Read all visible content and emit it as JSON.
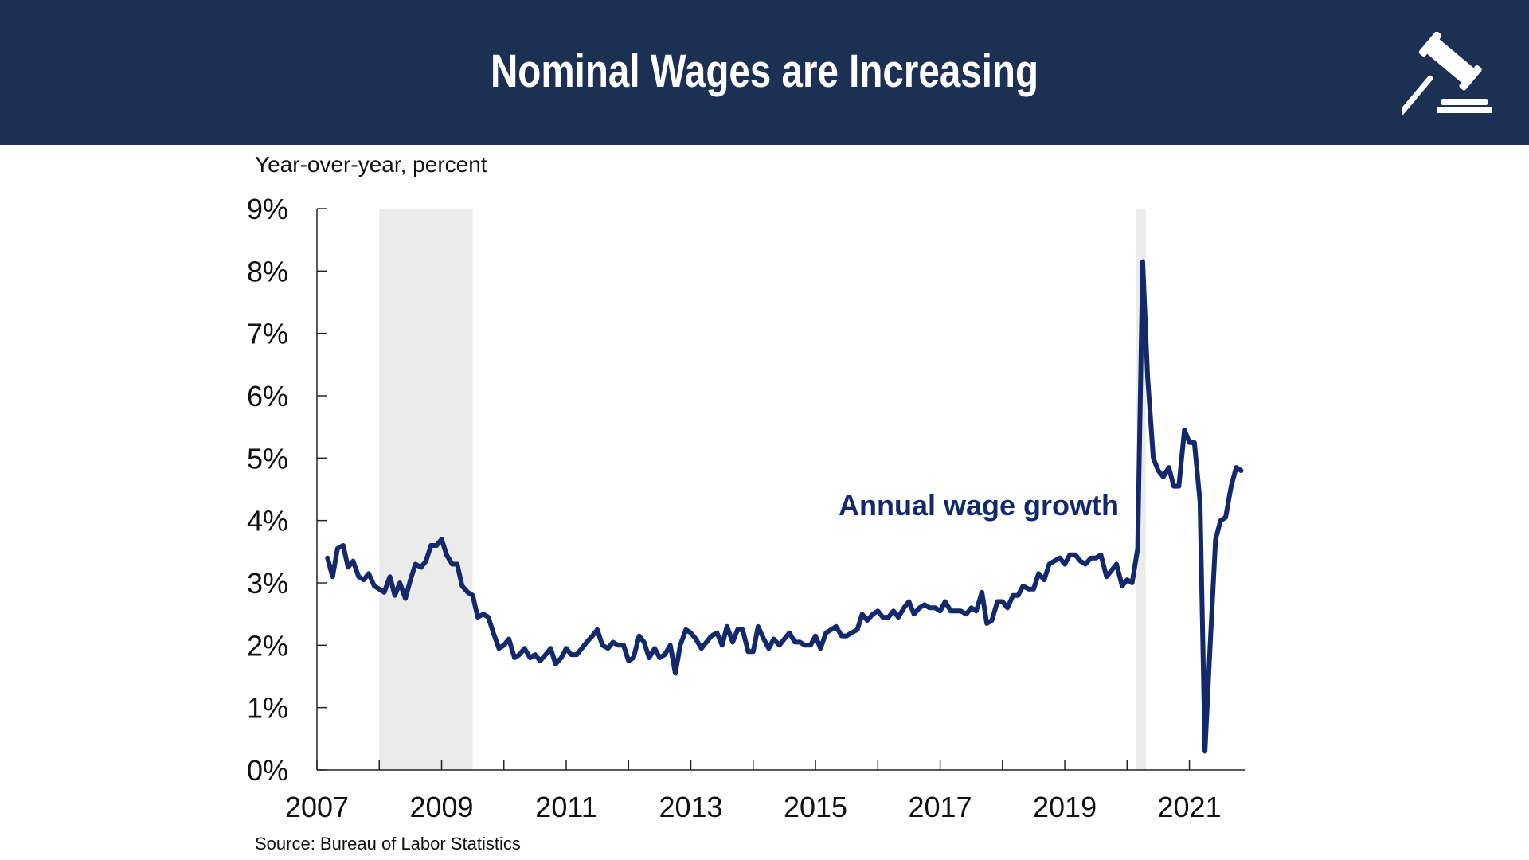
{
  "header": {
    "title": "Nominal Wages are Increasing",
    "icon": "gavel-icon",
    "background": "#1b3052"
  },
  "chart_data": {
    "type": "line",
    "title": "",
    "ylabel": "Year-over-year, percent",
    "xlabel": "",
    "ylim": [
      0,
      9
    ],
    "xlim": [
      2007.0,
      2021.9
    ],
    "y_ticks": [
      "0%",
      "1%",
      "2%",
      "3%",
      "4%",
      "5%",
      "6%",
      "7%",
      "8%",
      "9%"
    ],
    "y_tick_values": [
      0,
      1,
      2,
      3,
      4,
      5,
      6,
      7,
      8,
      9
    ],
    "x_ticks": [
      "2007",
      "2009",
      "2011",
      "2013",
      "2015",
      "2017",
      "2019",
      "2021"
    ],
    "x_tick_values": [
      2007,
      2009,
      2011,
      2013,
      2015,
      2017,
      2019,
      2021
    ],
    "grid": false,
    "recession_shading": [
      [
        2008.0,
        2009.5
      ],
      [
        2020.15,
        2020.3
      ]
    ],
    "shading_color": "#ebebeb",
    "series": [
      {
        "name": "Annual wage growth",
        "color": "#13296b",
        "points": [
          [
            2007.17,
            3.4
          ],
          [
            2007.25,
            3.1
          ],
          [
            2007.33,
            3.55
          ],
          [
            2007.42,
            3.6
          ],
          [
            2007.5,
            3.25
          ],
          [
            2007.58,
            3.35
          ],
          [
            2007.67,
            3.1
          ],
          [
            2007.75,
            3.05
          ],
          [
            2007.83,
            3.15
          ],
          [
            2007.92,
            2.95
          ],
          [
            2008.0,
            2.9
          ],
          [
            2008.08,
            2.85
          ],
          [
            2008.17,
            3.1
          ],
          [
            2008.25,
            2.8
          ],
          [
            2008.33,
            3.0
          ],
          [
            2008.42,
            2.75
          ],
          [
            2008.5,
            3.05
          ],
          [
            2008.58,
            3.3
          ],
          [
            2008.67,
            3.25
          ],
          [
            2008.75,
            3.35
          ],
          [
            2008.83,
            3.6
          ],
          [
            2008.92,
            3.6
          ],
          [
            2009.0,
            3.7
          ],
          [
            2009.08,
            3.45
          ],
          [
            2009.17,
            3.3
          ],
          [
            2009.25,
            3.3
          ],
          [
            2009.33,
            2.95
          ],
          [
            2009.42,
            2.85
          ],
          [
            2009.5,
            2.8
          ],
          [
            2009.58,
            2.45
          ],
          [
            2009.67,
            2.5
          ],
          [
            2009.75,
            2.45
          ],
          [
            2009.83,
            2.2
          ],
          [
            2009.92,
            1.95
          ],
          [
            2010.0,
            2.0
          ],
          [
            2010.08,
            2.1
          ],
          [
            2010.17,
            1.8
          ],
          [
            2010.25,
            1.85
          ],
          [
            2010.33,
            1.95
          ],
          [
            2010.42,
            1.8
          ],
          [
            2010.5,
            1.85
          ],
          [
            2010.58,
            1.75
          ],
          [
            2010.67,
            1.85
          ],
          [
            2010.75,
            1.95
          ],
          [
            2010.83,
            1.7
          ],
          [
            2010.92,
            1.8
          ],
          [
            2011.0,
            1.95
          ],
          [
            2011.08,
            1.85
          ],
          [
            2011.17,
            1.85
          ],
          [
            2011.25,
            1.95
          ],
          [
            2011.33,
            2.05
          ],
          [
            2011.42,
            2.15
          ],
          [
            2011.5,
            2.25
          ],
          [
            2011.58,
            2.0
          ],
          [
            2011.67,
            1.95
          ],
          [
            2011.75,
            2.05
          ],
          [
            2011.83,
            2.0
          ],
          [
            2011.92,
            2.0
          ],
          [
            2012.0,
            1.75
          ],
          [
            2012.08,
            1.8
          ],
          [
            2012.17,
            2.15
          ],
          [
            2012.25,
            2.05
          ],
          [
            2012.33,
            1.8
          ],
          [
            2012.42,
            1.95
          ],
          [
            2012.5,
            1.8
          ],
          [
            2012.58,
            1.85
          ],
          [
            2012.67,
            2.0
          ],
          [
            2012.75,
            1.55
          ],
          [
            2012.83,
            2.0
          ],
          [
            2012.92,
            2.25
          ],
          [
            2013.0,
            2.2
          ],
          [
            2013.08,
            2.1
          ],
          [
            2013.17,
            1.95
          ],
          [
            2013.25,
            2.05
          ],
          [
            2013.33,
            2.15
          ],
          [
            2013.42,
            2.2
          ],
          [
            2013.5,
            2.0
          ],
          [
            2013.58,
            2.3
          ],
          [
            2013.67,
            2.05
          ],
          [
            2013.75,
            2.25
          ],
          [
            2013.83,
            2.25
          ],
          [
            2013.92,
            1.9
          ],
          [
            2014.0,
            1.9
          ],
          [
            2014.08,
            2.3
          ],
          [
            2014.17,
            2.1
          ],
          [
            2014.25,
            1.95
          ],
          [
            2014.33,
            2.1
          ],
          [
            2014.42,
            2.0
          ],
          [
            2014.5,
            2.1
          ],
          [
            2014.58,
            2.2
          ],
          [
            2014.67,
            2.05
          ],
          [
            2014.75,
            2.05
          ],
          [
            2014.83,
            2.0
          ],
          [
            2014.92,
            2.0
          ],
          [
            2015.0,
            2.15
          ],
          [
            2015.08,
            1.95
          ],
          [
            2015.17,
            2.2
          ],
          [
            2015.25,
            2.25
          ],
          [
            2015.33,
            2.3
          ],
          [
            2015.42,
            2.15
          ],
          [
            2015.5,
            2.15
          ],
          [
            2015.58,
            2.2
          ],
          [
            2015.67,
            2.25
          ],
          [
            2015.75,
            2.5
          ],
          [
            2015.83,
            2.4
          ],
          [
            2015.92,
            2.5
          ],
          [
            2016.0,
            2.55
          ],
          [
            2016.08,
            2.45
          ],
          [
            2016.17,
            2.45
          ],
          [
            2016.25,
            2.55
          ],
          [
            2016.33,
            2.45
          ],
          [
            2016.42,
            2.6
          ],
          [
            2016.5,
            2.7
          ],
          [
            2016.58,
            2.5
          ],
          [
            2016.67,
            2.6
          ],
          [
            2016.75,
            2.65
          ],
          [
            2016.83,
            2.6
          ],
          [
            2016.92,
            2.6
          ],
          [
            2017.0,
            2.55
          ],
          [
            2017.08,
            2.7
          ],
          [
            2017.17,
            2.55
          ],
          [
            2017.25,
            2.55
          ],
          [
            2017.33,
            2.55
          ],
          [
            2017.42,
            2.5
          ],
          [
            2017.5,
            2.6
          ],
          [
            2017.58,
            2.55
          ],
          [
            2017.67,
            2.85
          ],
          [
            2017.75,
            2.35
          ],
          [
            2017.83,
            2.4
          ],
          [
            2017.92,
            2.7
          ],
          [
            2018.0,
            2.7
          ],
          [
            2018.08,
            2.6
          ],
          [
            2018.17,
            2.8
          ],
          [
            2018.25,
            2.8
          ],
          [
            2018.33,
            2.95
          ],
          [
            2018.42,
            2.9
          ],
          [
            2018.5,
            2.9
          ],
          [
            2018.58,
            3.15
          ],
          [
            2018.67,
            3.05
          ],
          [
            2018.75,
            3.3
          ],
          [
            2018.83,
            3.35
          ],
          [
            2018.92,
            3.4
          ],
          [
            2019.0,
            3.3
          ],
          [
            2019.08,
            3.45
          ],
          [
            2019.17,
            3.45
          ],
          [
            2019.25,
            3.35
          ],
          [
            2019.33,
            3.3
          ],
          [
            2019.42,
            3.4
          ],
          [
            2019.5,
            3.4
          ],
          [
            2019.58,
            3.45
          ],
          [
            2019.67,
            3.1
          ],
          [
            2019.75,
            3.2
          ],
          [
            2019.83,
            3.3
          ],
          [
            2019.92,
            2.95
          ],
          [
            2020.0,
            3.05
          ],
          [
            2020.08,
            3.0
          ],
          [
            2020.17,
            3.55
          ],
          [
            2020.25,
            8.15
          ],
          [
            2020.33,
            6.3
          ],
          [
            2020.42,
            5.0
          ],
          [
            2020.5,
            4.8
          ],
          [
            2020.58,
            4.7
          ],
          [
            2020.67,
            4.85
          ],
          [
            2020.75,
            4.55
          ],
          [
            2020.83,
            4.55
          ],
          [
            2020.92,
            5.45
          ],
          [
            2021.0,
            5.25
          ],
          [
            2021.08,
            5.25
          ],
          [
            2021.17,
            4.3
          ],
          [
            2021.25,
            0.3
          ],
          [
            2021.33,
            1.95
          ],
          [
            2021.42,
            3.7
          ],
          [
            2021.5,
            4.0
          ],
          [
            2021.58,
            4.05
          ],
          [
            2021.67,
            4.55
          ],
          [
            2021.75,
            4.85
          ],
          [
            2021.83,
            4.8
          ]
        ]
      }
    ],
    "annotations": [
      {
        "text": "Annual wage growth",
        "color": "#13296b"
      }
    ]
  },
  "footer": {
    "source": "Source: Bureau of Labor Statistics"
  }
}
